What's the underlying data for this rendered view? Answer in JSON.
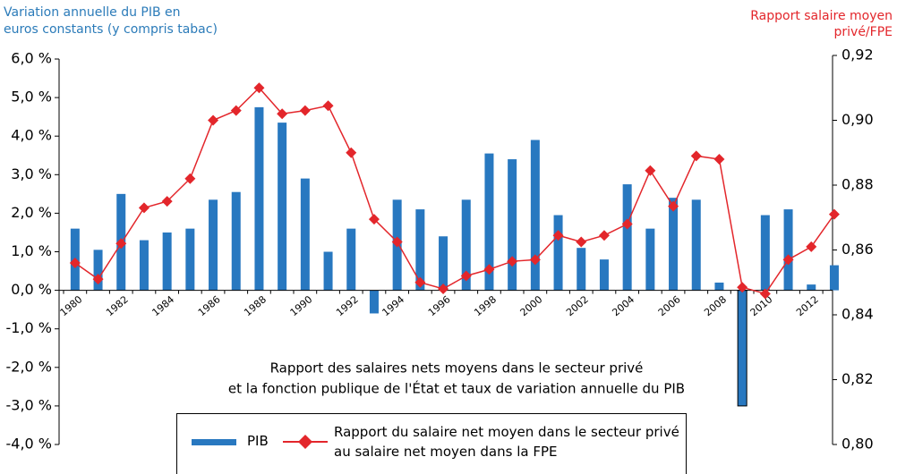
{
  "chart_data": {
    "type": "bar-line",
    "y_label": [
      "Variation annuelle du PIB en",
      "euros constants (y compris tabac)"
    ],
    "y2_label": [
      "Rapport salaire moyen",
      "privé/FPE"
    ],
    "annotation": [
      "Rapport des salaires nets moyens dans le secteur privé",
      "et la fonction publique de l'État et taux de variation annuelle du PIB"
    ],
    "categories": [
      "1980",
      null,
      "1982",
      null,
      "1984",
      null,
      "1986",
      null,
      "1988",
      null,
      "1990",
      null,
      "1992",
      null,
      "1994",
      null,
      "1996",
      null,
      "1998",
      null,
      "2000",
      null,
      "2002",
      null,
      "2004",
      null,
      "2006",
      null,
      "2008",
      null,
      "2010",
      null,
      "2012",
      null
    ],
    "series": [
      {
        "name": "PIB",
        "color": "#2878c0",
        "kind": "bar",
        "values": [
          1.6,
          1.05,
          2.5,
          1.3,
          1.5,
          1.6,
          2.35,
          2.55,
          4.75,
          4.35,
          2.9,
          1.0,
          1.6,
          -0.6,
          2.35,
          2.1,
          1.4,
          2.35,
          3.55,
          3.4,
          3.9,
          1.95,
          1.1,
          0.8,
          2.75,
          1.6,
          2.4,
          2.35,
          0.2,
          -3.0,
          1.95,
          2.1,
          0.15,
          0.65
        ]
      },
      {
        "name": "Rapport du salaire net moyen dans le secteur privé au salaire net moyen dans la FPE",
        "color": "#e3262b",
        "kind": "line",
        "axis": "y2",
        "values": [
          0.856,
          0.851,
          0.862,
          0.873,
          0.875,
          0.882,
          0.9,
          0.903,
          0.91,
          0.902,
          0.903,
          0.9045,
          0.89,
          0.8695,
          0.8625,
          0.85,
          0.848,
          0.852,
          0.854,
          0.8565,
          0.857,
          0.8645,
          0.8625,
          0.8645,
          0.868,
          0.8845,
          0.8735,
          0.889,
          0.888,
          0.8485,
          0.8465,
          0.857,
          0.861,
          0.871
        ]
      }
    ],
    "ylim": [
      -4,
      6
    ],
    "yticks": [
      {
        "value": 6,
        "label": "6,0 %"
      },
      {
        "value": 5,
        "label": "5,0 %"
      },
      {
        "value": 4,
        "label": "4,0 %"
      },
      {
        "value": 3,
        "label": "3,0 %"
      },
      {
        "value": 2,
        "label": "2,0 %"
      },
      {
        "value": 1,
        "label": "1,0 %"
      },
      {
        "value": 0,
        "label": "0,0 %"
      },
      {
        "value": -1,
        "label": "-1,0 %"
      },
      {
        "value": -2,
        "label": "-2,0 %"
      },
      {
        "value": -3,
        "label": "-3,0 %"
      },
      {
        "value": -4,
        "label": "-4,0 %"
      }
    ],
    "y2lim": [
      0.8,
      0.92
    ],
    "y2ticks": [
      {
        "value": 0.92,
        "label": "0,92"
      },
      {
        "value": 0.9,
        "label": "0,90"
      },
      {
        "value": 0.88,
        "label": "0,88"
      },
      {
        "value": 0.86,
        "label": "0,86"
      },
      {
        "value": 0.84,
        "label": "0,84"
      },
      {
        "value": 0.82,
        "label": "0,82"
      },
      {
        "value": 0.8,
        "label": "0,80"
      }
    ]
  }
}
